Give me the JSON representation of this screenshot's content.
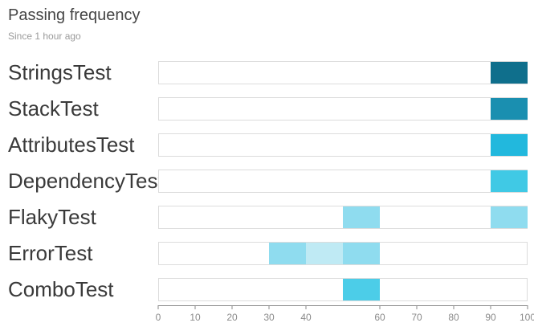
{
  "header": {
    "title": "Passing frequency",
    "subtitle": "Since 1 hour ago"
  },
  "chart_data": {
    "type": "bar",
    "title": "Passing frequency",
    "subtitle": "Since 1 hour ago",
    "xlabel": "",
    "ylabel": "",
    "xlim": [
      0,
      100
    ],
    "grid": false,
    "x_ticks": [
      0,
      10,
      20,
      30,
      40,
      60,
      70,
      80,
      90,
      100
    ],
    "bin_size": 10,
    "categories": [
      "StringsTest",
      "StackTest",
      "AttributesTest",
      "DependencyTest",
      "FlakyTest",
      "ErrorTest",
      "ComboTest"
    ],
    "rows": [
      {
        "name": "StringsTest",
        "bins": [
          {
            "start": 90,
            "end": 100,
            "color": "#0f6f8c"
          }
        ]
      },
      {
        "name": "StackTest",
        "bins": [
          {
            "start": 90,
            "end": 100,
            "color": "#1a8fb0"
          }
        ]
      },
      {
        "name": "AttributesTest",
        "bins": [
          {
            "start": 90,
            "end": 100,
            "color": "#22b8dd"
          }
        ]
      },
      {
        "name": "DependencyTest",
        "bins": [
          {
            "start": 90,
            "end": 100,
            "color": "#40c9e5"
          }
        ]
      },
      {
        "name": "FlakyTest",
        "bins": [
          {
            "start": 50,
            "end": 60,
            "color": "#8fdcef"
          },
          {
            "start": 90,
            "end": 100,
            "color": "#8fdcef"
          }
        ]
      },
      {
        "name": "ErrorTest",
        "bins": [
          {
            "start": 30,
            "end": 40,
            "color": "#8fdcef"
          },
          {
            "start": 40,
            "end": 50,
            "color": "#bfeaf4"
          },
          {
            "start": 50,
            "end": 60,
            "color": "#8fdcef"
          }
        ]
      },
      {
        "name": "ComboTest",
        "bins": [
          {
            "start": 50,
            "end": 60,
            "color": "#4ccde8"
          }
        ]
      }
    ]
  },
  "colors": {
    "track_border": "#dcdcdc",
    "track_fill": "#ffffff",
    "axis": "#8a8a8a",
    "label_text": "#3a3a3a"
  }
}
